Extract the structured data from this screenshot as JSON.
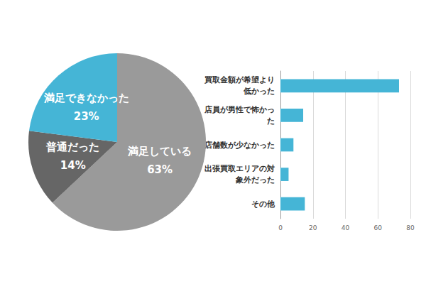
{
  "chart_data": [
    {
      "type": "pie",
      "categories": [
        "満足している",
        "普通だった",
        "満足できなかった"
      ],
      "values": [
        63,
        14,
        23
      ],
      "value_labels": [
        "63%",
        "14%",
        "23%"
      ],
      "colors": [
        "#9a9a9a",
        "#666666",
        "#45b5d6"
      ],
      "data_labels": true
    },
    {
      "type": "bar",
      "orientation": "horizontal",
      "categories": [
        "買取金額が希望より低かった",
        "店員が男性で怖かった",
        "店舗数が少なかった",
        "出張買取エリアの対象外だった",
        "その他"
      ],
      "values": [
        73,
        14,
        8,
        5,
        15
      ],
      "color": "#45b5d6",
      "xlim": [
        0,
        80
      ],
      "xticks": [
        0,
        20,
        40,
        60,
        80
      ],
      "grid": true
    }
  ]
}
